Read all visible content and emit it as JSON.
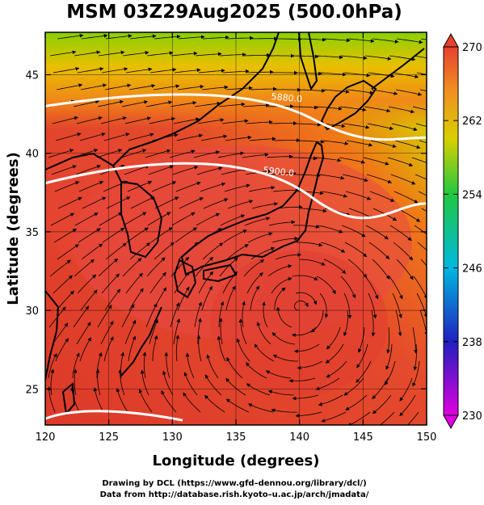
{
  "title": "MSM 03Z29Aug2025 (500.0hPa)",
  "axes": {
    "xlabel": "Longitude (degrees)",
    "ylabel": "Latitude  (degrees)",
    "xlim": [
      120,
      150
    ],
    "ylim": [
      22.7,
      47.7
    ],
    "xticks": [
      "120",
      "125",
      "130",
      "135",
      "140",
      "145",
      "150"
    ],
    "yticks": [
      "25",
      "30",
      "35",
      "40",
      "45"
    ]
  },
  "colorbar": {
    "range": [
      230,
      270
    ],
    "ticks": [
      "230",
      "238",
      "246",
      "254",
      "262",
      "270"
    ]
  },
  "contours": [
    {
      "label": "5880.0",
      "lat_west": 43.0,
      "lat_east": 41.0,
      "peak": 44.1
    },
    {
      "label": "5900.0",
      "lat_west": 38.1,
      "lat_east": 36.8,
      "peak": 39.9
    }
  ],
  "credits": {
    "line1": "Drawing by DCL (https://www.gfd–dennou.org/library/dcl/)",
    "line2": "Data from http://database.rish.kyoto–u.ac.jp/arch/jmadata/"
  },
  "colors": {
    "warm": "#e64032",
    "mid": "#f07a10",
    "green": "#58c800"
  }
}
